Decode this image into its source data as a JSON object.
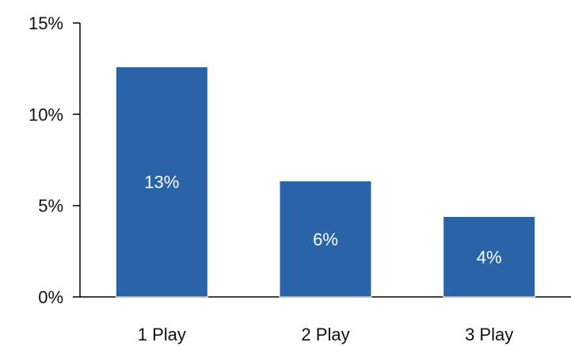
{
  "chart_data": {
    "type": "bar",
    "categories": [
      "1 Play",
      "2 Play",
      "3 Play"
    ],
    "values": [
      12.6,
      6.35,
      4.4
    ],
    "data_labels": [
      "13%",
      "6%",
      "4%"
    ],
    "yticks": [
      0,
      5,
      10,
      15
    ],
    "ytick_labels": [
      "0%",
      "5%",
      "10%",
      "15%"
    ],
    "ylim": [
      0,
      15
    ],
    "title": "",
    "xlabel": "",
    "ylabel": "",
    "grid": false,
    "bar_color": "#2a64a8",
    "label_color": "#ffffff"
  }
}
